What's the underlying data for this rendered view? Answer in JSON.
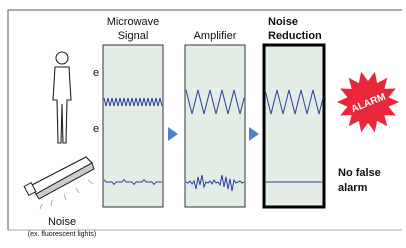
{
  "left_fragments": [
    "e",
    "e"
  ],
  "columns": [
    {
      "label_lines": [
        "Microwave",
        "Signal"
      ]
    },
    {
      "label_lines": [
        "Amplifier"
      ]
    },
    {
      "label_lines": [
        "Noise",
        "Reduction"
      ]
    }
  ],
  "alarm": "ALARM",
  "result_lines": [
    "No false",
    "alarm"
  ],
  "noise_label": "Noise",
  "noise_note": "(ex. fluorescent lights)"
}
